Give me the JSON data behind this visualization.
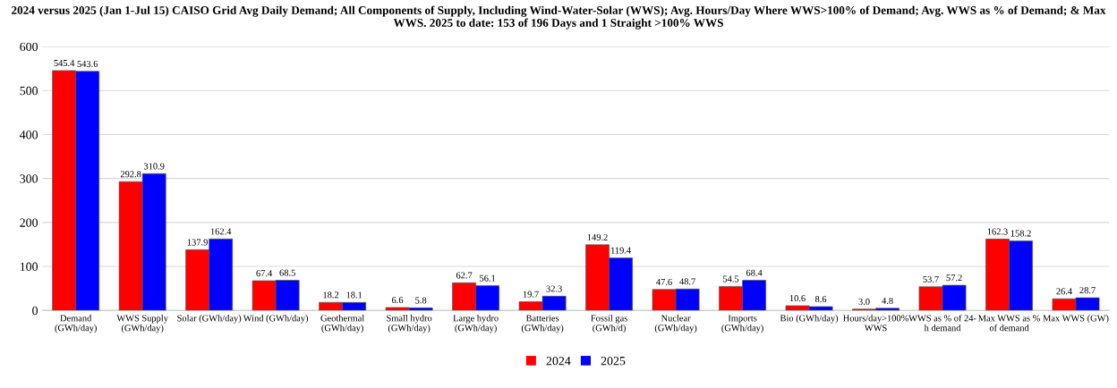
{
  "chart_data": {
    "type": "bar",
    "title": "2024 versus 2025 (Jan 1-Jul 15) CAISO Grid Avg Daily Demand; All Components of Supply, Including Wind-Water-Solar (WWS); Avg. Hours/Day Where WWS>100% of Demand; Avg. WWS as % of Demand; & Max WWS. 2025 to date: 153 of 196 Days and 1 Straight >100% WWS",
    "categories": [
      "Demand\n(GWh/day)",
      "WWS Supply\n(GWh/day)",
      "Solar (GWh/day)",
      "Wind (GWh/day)",
      "Geothermal\n(GWh/day)",
      "Small hydro\n(GWh/day)",
      "Large hydro\n(GWh/day)",
      "Batteries\n(GWh/day)",
      "Fossil gas\n(GWh/d)",
      "Nuclear\n(GWh/day)",
      "Imports\n(GWh/day)",
      "Bio (GWh/day)",
      "Hours/day>100%\nWWS",
      "WWS as % of 24-\nh demand",
      "Max WWS as %\nof demand",
      "Max WWS (GW)"
    ],
    "series": [
      {
        "name": "2024",
        "color": "#ff0000",
        "values": [
          545.4,
          292.8,
          137.9,
          67.4,
          18.2,
          6.6,
          62.7,
          19.7,
          149.2,
          47.6,
          54.5,
          10.6,
          3.0,
          53.7,
          162.3,
          26.4
        ],
        "value_labels": [
          "545.4",
          "292.8",
          "137.9",
          "67.4",
          "18.2",
          "6.6",
          "62.7",
          "19.7",
          "149.2",
          "47.6",
          "54.5",
          "10.6",
          "3.0",
          "53.7",
          "162.3",
          "26.4"
        ]
      },
      {
        "name": "2025",
        "color": "#0000ff",
        "values": [
          543.6,
          310.9,
          162.4,
          68.5,
          18.1,
          5.8,
          56.1,
          32.3,
          119.4,
          48.7,
          68.4,
          8.6,
          4.8,
          57.2,
          158.2,
          28.7
        ],
        "value_labels": [
          "543.6",
          "310.9",
          "162.4",
          "68.5",
          "18.1",
          "5.8",
          "56.1",
          "32.3",
          "119.4",
          "48.7",
          "68.4",
          "8.6",
          "4.8",
          "57.2",
          "158.2",
          "28.7"
        ]
      }
    ],
    "ylim": [
      0,
      600
    ],
    "yticks": [
      0,
      100,
      200,
      300,
      400,
      500,
      600
    ],
    "grid": "y",
    "legend": "bottom"
  }
}
